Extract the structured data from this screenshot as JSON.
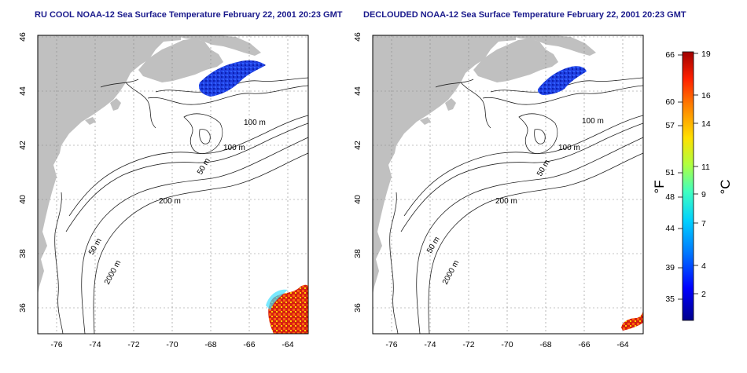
{
  "panels": [
    {
      "id": "left",
      "title": "RU COOL NOAA-12 Sea Surface Temperature February 22, 2001 20:23 GMT"
    },
    {
      "id": "right",
      "title": "DECLOUDED NOAA-12 Sea Surface Temperature February 22, 2001 20:23 GMT"
    }
  ],
  "axes": {
    "x_ticks": [
      "-76",
      "-74",
      "-72",
      "-70",
      "-68",
      "-66",
      "-64"
    ],
    "y_ticks": [
      "46",
      "44",
      "42",
      "40",
      "38",
      "36"
    ]
  },
  "contour_labels": [
    "100 m",
    "100 m",
    "50 m",
    "200 m",
    "50 m",
    "2000 m"
  ],
  "colorbar": {
    "unit_f": "°F",
    "unit_c": "°C",
    "fahrenheit_ticks": [
      "66",
      "60",
      "57",
      "51",
      "48",
      "44",
      "39",
      "35"
    ],
    "celsius_ticks": [
      "19",
      "16",
      "14",
      "11",
      "9",
      "7",
      "4",
      "2"
    ],
    "colors": [
      "#00008c",
      "#0000ff",
      "#0077ff",
      "#00d0ff",
      "#40ffc0",
      "#b0ff40",
      "#ffe000",
      "#ff8000",
      "#ff2000",
      "#a00000"
    ]
  },
  "colors": {
    "land": "#c0c0c0",
    "title": "#1a1a8c",
    "cold_water": "#1f3fe0",
    "warm_water": "#d42010"
  }
}
